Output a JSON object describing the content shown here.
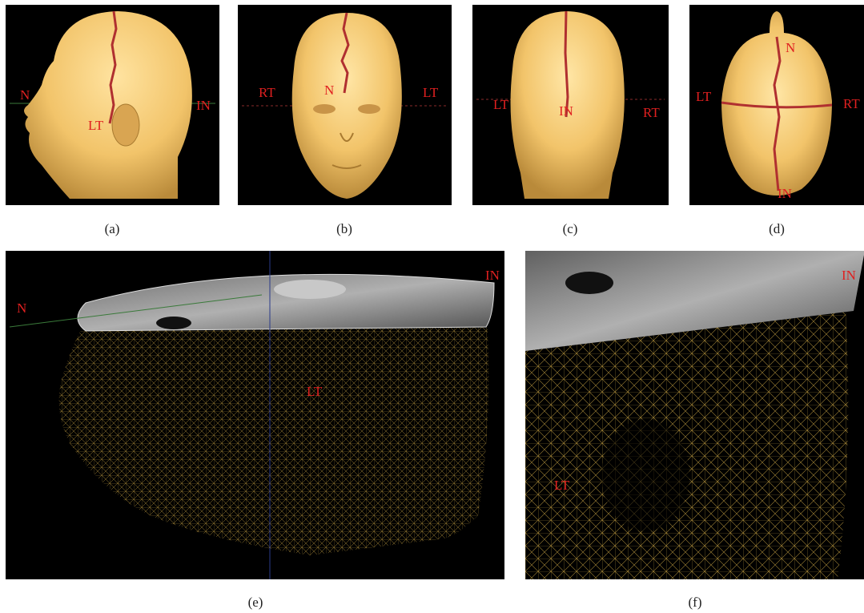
{
  "panels": {
    "a": {
      "caption": "(a)",
      "labels": {
        "n": "N",
        "lt": "LT",
        "in": "IN"
      }
    },
    "b": {
      "caption": "(b)",
      "labels": {
        "rt": "RT",
        "n": "N",
        "lt": "LT"
      }
    },
    "c": {
      "caption": "(c)",
      "labels": {
        "lt": "LT",
        "in": "IN",
        "rt": "RT"
      }
    },
    "d": {
      "caption": "(d)",
      "labels": {
        "n": "N",
        "lt": "LT",
        "rt": "RT",
        "in": "IN"
      }
    },
    "e": {
      "caption": "(e)",
      "labels": {
        "n": "N",
        "in": "IN",
        "lt": "LT"
      }
    },
    "f": {
      "caption": "(f)",
      "labels": {
        "in": "IN",
        "lt": "LT"
      }
    }
  },
  "colors": {
    "skin": "#f2c46a",
    "marker_line": "#b03030",
    "label": "#e02020",
    "mesh": "#d8b048",
    "background": "#000000"
  }
}
